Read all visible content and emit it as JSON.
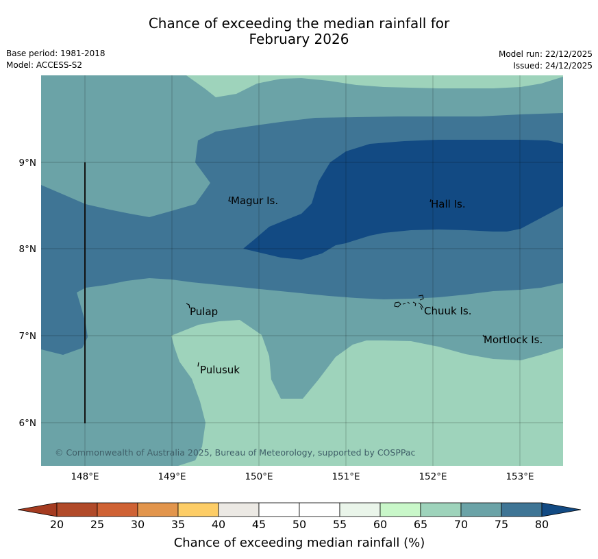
{
  "title": {
    "line1": "Chance of exceeding the median rainfall for",
    "line2": "February 2026"
  },
  "meta": {
    "base_period": "Base period: 1981-2018",
    "model": "Model: ACCESS-S2",
    "model_run": "Model run: 22/12/2025",
    "issued": "Issued: 24/12/2025"
  },
  "map": {
    "x_ticks": [
      "148°E",
      "149°E",
      "150°E",
      "151°E",
      "152°E",
      "153°E"
    ],
    "y_ticks": [
      "9°N",
      "8°N",
      "7°N",
      "6°N"
    ],
    "places": [
      "Magur Is.",
      "Hall Is.",
      "Pulap",
      "Chuuk Is.",
      "Mortlock Is.",
      "Pulusuk"
    ],
    "copyright": "© Commonwealth of Australia 2025, Bureau of Meteorology, supported by COSPPac",
    "colors": {
      "pct_65_70": "#9ed3bb",
      "pct_70_75": "#6ba3a7",
      "pct_75_80": "#3f7595",
      "pct_80_plus": "#124a83"
    }
  },
  "colorbar": {
    "ticks": [
      "20",
      "25",
      "30",
      "35",
      "40",
      "45",
      "50",
      "55",
      "60",
      "65",
      "70",
      "75",
      "80"
    ],
    "colors": [
      "#a53b20",
      "#b14a29",
      "#cf6234",
      "#e2954c",
      "#fdcd66",
      "#ece9e4",
      "#ffffff",
      "#ffffff",
      "#eaf5ea",
      "#c9f7c9",
      "#9ed3bb",
      "#6ba3a7",
      "#3f7595",
      "#124a83"
    ],
    "label": "Chance of exceeding median rainfall (%)"
  }
}
